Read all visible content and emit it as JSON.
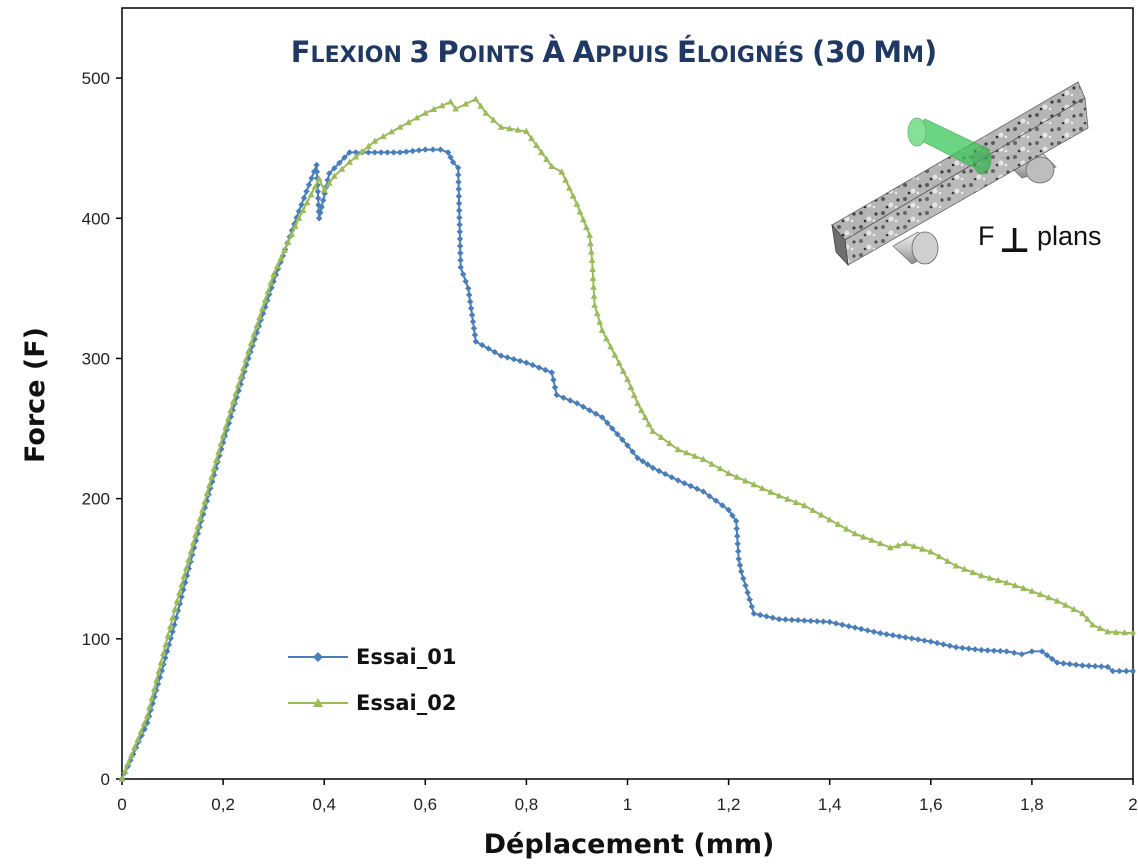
{
  "chart_data": {
    "type": "line",
    "title": "FLEXION 3 POINTS À APPUIS ÉLOIGNÉS (30 MM)",
    "xlabel": "Déplacement (mm)",
    "ylabel": "Force (F)",
    "xlim": [
      0,
      2
    ],
    "ylim": [
      0,
      550
    ],
    "x_ticks": [
      "0",
      "0,2",
      "0,4",
      "0,6",
      "0,8",
      "1",
      "1,2",
      "1,4",
      "1,6",
      "1,8",
      "2"
    ],
    "y_ticks": [
      "0",
      "100",
      "200",
      "300",
      "400",
      "500"
    ],
    "grid": false,
    "legend_position": "bottom-left",
    "series": [
      {
        "name": "Essai_01",
        "color": "#4a7ebb",
        "marker": "diamond",
        "points": [
          [
            0,
            0
          ],
          [
            0.05,
            40
          ],
          [
            0.1,
            105
          ],
          [
            0.15,
            175
          ],
          [
            0.2,
            240
          ],
          [
            0.25,
            300
          ],
          [
            0.3,
            355
          ],
          [
            0.35,
            405
          ],
          [
            0.385,
            438
          ],
          [
            0.39,
            400
          ],
          [
            0.395,
            408
          ],
          [
            0.41,
            432
          ],
          [
            0.45,
            447
          ],
          [
            0.5,
            447
          ],
          [
            0.55,
            447
          ],
          [
            0.6,
            449
          ],
          [
            0.63,
            449
          ],
          [
            0.645,
            447
          ],
          [
            0.655,
            440
          ],
          [
            0.665,
            436
          ],
          [
            0.67,
            365
          ],
          [
            0.685,
            350
          ],
          [
            0.7,
            312
          ],
          [
            0.75,
            302
          ],
          [
            0.8,
            297
          ],
          [
            0.85,
            290
          ],
          [
            0.86,
            274
          ],
          [
            0.9,
            268
          ],
          [
            0.95,
            258
          ],
          [
            1.0,
            238
          ],
          [
            1.02,
            229
          ],
          [
            1.05,
            222
          ],
          [
            1.1,
            213
          ],
          [
            1.15,
            205
          ],
          [
            1.2,
            192
          ],
          [
            1.215,
            184
          ],
          [
            1.22,
            157
          ],
          [
            1.225,
            148
          ],
          [
            1.25,
            118
          ],
          [
            1.3,
            114
          ],
          [
            1.35,
            113
          ],
          [
            1.4,
            112
          ],
          [
            1.45,
            108
          ],
          [
            1.5,
            104
          ],
          [
            1.55,
            101
          ],
          [
            1.6,
            98
          ],
          [
            1.65,
            94
          ],
          [
            1.7,
            92
          ],
          [
            1.75,
            91
          ],
          [
            1.78,
            89
          ],
          [
            1.8,
            91
          ],
          [
            1.82,
            91
          ],
          [
            1.85,
            83
          ],
          [
            1.9,
            81
          ],
          [
            1.95,
            80
          ],
          [
            1.96,
            77
          ],
          [
            2.0,
            77
          ]
        ]
      },
      {
        "name": "Essai_02",
        "color": "#9bbb59",
        "marker": "triangle",
        "points": [
          [
            0,
            0
          ],
          [
            0.05,
            45
          ],
          [
            0.1,
            115
          ],
          [
            0.15,
            180
          ],
          [
            0.2,
            245
          ],
          [
            0.25,
            305
          ],
          [
            0.3,
            360
          ],
          [
            0.35,
            400
          ],
          [
            0.39,
            428
          ],
          [
            0.4,
            420
          ],
          [
            0.42,
            430
          ],
          [
            0.45,
            440
          ],
          [
            0.5,
            455
          ],
          [
            0.55,
            465
          ],
          [
            0.6,
            475
          ],
          [
            0.65,
            483
          ],
          [
            0.66,
            478
          ],
          [
            0.7,
            485
          ],
          [
            0.72,
            475
          ],
          [
            0.75,
            465
          ],
          [
            0.8,
            462
          ],
          [
            0.85,
            437
          ],
          [
            0.87,
            433
          ],
          [
            0.9,
            410
          ],
          [
            0.925,
            388
          ],
          [
            0.93,
            370
          ],
          [
            0.935,
            338
          ],
          [
            0.95,
            320
          ],
          [
            1.0,
            285
          ],
          [
            1.02,
            268
          ],
          [
            1.05,
            248
          ],
          [
            1.1,
            235
          ],
          [
            1.15,
            228
          ],
          [
            1.2,
            218
          ],
          [
            1.25,
            210
          ],
          [
            1.3,
            202
          ],
          [
            1.35,
            195
          ],
          [
            1.4,
            185
          ],
          [
            1.45,
            175
          ],
          [
            1.5,
            168
          ],
          [
            1.52,
            165
          ],
          [
            1.55,
            168
          ],
          [
            1.6,
            162
          ],
          [
            1.65,
            152
          ],
          [
            1.7,
            145
          ],
          [
            1.75,
            140
          ],
          [
            1.8,
            134
          ],
          [
            1.85,
            127
          ],
          [
            1.9,
            118
          ],
          [
            1.92,
            110
          ],
          [
            1.95,
            105
          ],
          [
            2.0,
            104
          ]
        ]
      }
    ],
    "inset": {
      "label_prefix": "F",
      "perp_symbol": "⊥",
      "label_suffix": "plans",
      "beam_color": "#9a9a9a",
      "load_color": "#3cc85a"
    }
  }
}
